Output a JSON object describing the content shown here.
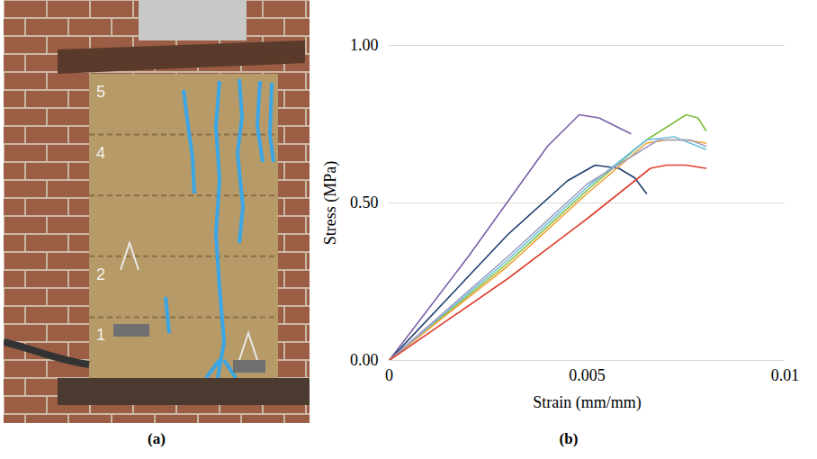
{
  "photo": {
    "panel_label": "(a)",
    "course_labels": [
      "5",
      "4",
      null,
      "2",
      "1"
    ]
  },
  "chart_data": {
    "type": "line",
    "panel_label": "(b)",
    "x_label": "Strain (mm/mm)",
    "y_label": "Stress (MPa)",
    "xlim": [
      0,
      0.01
    ],
    "xticks": [
      0,
      0.005,
      0.01
    ],
    "ylim": [
      0,
      1
    ],
    "yticks": [
      {
        "value": 0,
        "label": "0.00"
      },
      {
        "value": 0.5,
        "label": "0.50"
      },
      {
        "value": 1,
        "label": "1.00"
      }
    ],
    "grid": true,
    "series": [
      {
        "color": "#7b5ea7",
        "x": [
          0,
          0.002,
          0.004,
          0.0048,
          0.0053,
          0.0061
        ],
        "values": [
          0,
          0.33,
          0.68,
          0.78,
          0.77,
          0.72
        ]
      },
      {
        "color": "#1f3f6e",
        "x": [
          0,
          0.003,
          0.0045,
          0.0052,
          0.0058,
          0.0062,
          0.0065
        ],
        "values": [
          0,
          0.4,
          0.57,
          0.62,
          0.61,
          0.58,
          0.53
        ]
      },
      {
        "color": "#7fbf3f",
        "x": [
          0,
          0.003,
          0.005,
          0.0065,
          0.0075,
          0.0078,
          0.008
        ],
        "values": [
          0,
          0.31,
          0.54,
          0.7,
          0.78,
          0.77,
          0.73
        ]
      },
      {
        "color": "#f0a030",
        "x": [
          0,
          0.003,
          0.005,
          0.0065,
          0.007,
          0.0075,
          0.008
        ],
        "values": [
          0,
          0.3,
          0.53,
          0.69,
          0.7,
          0.7,
          0.69
        ]
      },
      {
        "color": "#6cc0e0",
        "x": [
          0,
          0.003,
          0.005,
          0.0065,
          0.0072,
          0.008
        ],
        "values": [
          0,
          0.32,
          0.55,
          0.7,
          0.71,
          0.67
        ]
      },
      {
        "color": "#a0a0c0",
        "x": [
          0,
          0.003,
          0.005,
          0.0068,
          0.0076,
          0.008
        ],
        "values": [
          0,
          0.33,
          0.56,
          0.7,
          0.7,
          0.68
        ]
      },
      {
        "color": "#e04030",
        "x": [
          0,
          0.003,
          0.005,
          0.0066,
          0.007,
          0.0075,
          0.008
        ],
        "values": [
          0,
          0.26,
          0.45,
          0.61,
          0.62,
          0.62,
          0.61
        ]
      }
    ]
  }
}
